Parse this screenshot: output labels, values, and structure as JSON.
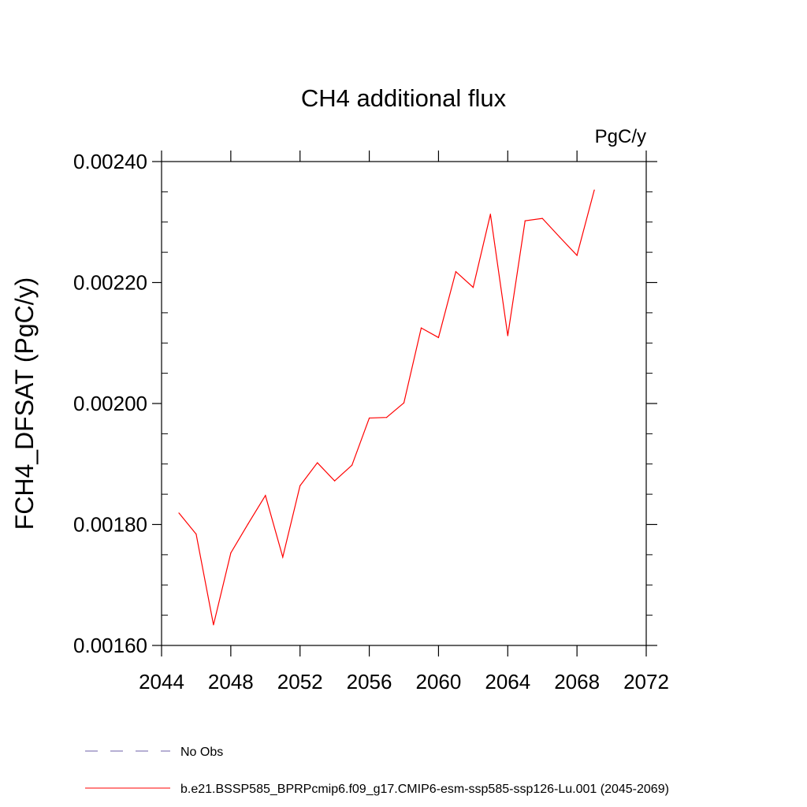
{
  "chart_data": {
    "type": "line",
    "title": "CH4 additional flux",
    "units_label": "PgC/y",
    "xlabel": "",
    "ylabel": "FCH4_DFSAT  (PgC/y)",
    "xlim": [
      2044,
      2072
    ],
    "ylim": [
      0.0016,
      0.0024
    ],
    "x_ticks": [
      2044,
      2048,
      2052,
      2056,
      2060,
      2064,
      2068,
      2072
    ],
    "x_tick_labels": [
      "2044",
      "2048",
      "2052",
      "2056",
      "2060",
      "2064",
      "2068",
      "2072"
    ],
    "y_ticks": [
      0.0016,
      0.0018,
      0.002,
      0.0022,
      0.0024
    ],
    "y_tick_labels": [
      "0.00160",
      "0.00180",
      "0.00200",
      "0.00220",
      "0.00240"
    ],
    "grid": false,
    "series": [
      {
        "name": "b.e21.BSSP585_BPRPcmip6.f09_g17.CMIP6-esm-ssp585-ssp126-Lu.001 (2045-2069)",
        "color": "#ff0000",
        "x": [
          2045,
          2046,
          2047,
          2048,
          2049,
          2050,
          2051,
          2052,
          2053,
          2054,
          2055,
          2056,
          2057,
          2058,
          2059,
          2060,
          2061,
          2062,
          2063,
          2064,
          2065,
          2066,
          2067,
          2068,
          2069
        ],
        "y": [
          0.001819,
          0.001784,
          0.001634,
          0.001753,
          0.001801,
          0.001848,
          0.001746,
          0.001864,
          0.001902,
          0.001872,
          0.001898,
          0.001976,
          0.001977,
          0.002001,
          0.002125,
          0.002109,
          0.002218,
          0.002192,
          0.002313,
          0.002112,
          0.002302,
          0.002306,
          0.002275,
          0.002245,
          0.002353
        ]
      }
    ],
    "legend": {
      "placement": "bottom",
      "entries": [
        {
          "label": "No Obs",
          "style": "dashed",
          "color": "#6e5fa8"
        },
        {
          "label": "b.e21.BSSP585_BPRPcmip6.f09_g17.CMIP6-esm-ssp585-ssp126-Lu.001 (2045-2069)",
          "style": "solid",
          "color": "#ff0000"
        }
      ]
    }
  }
}
